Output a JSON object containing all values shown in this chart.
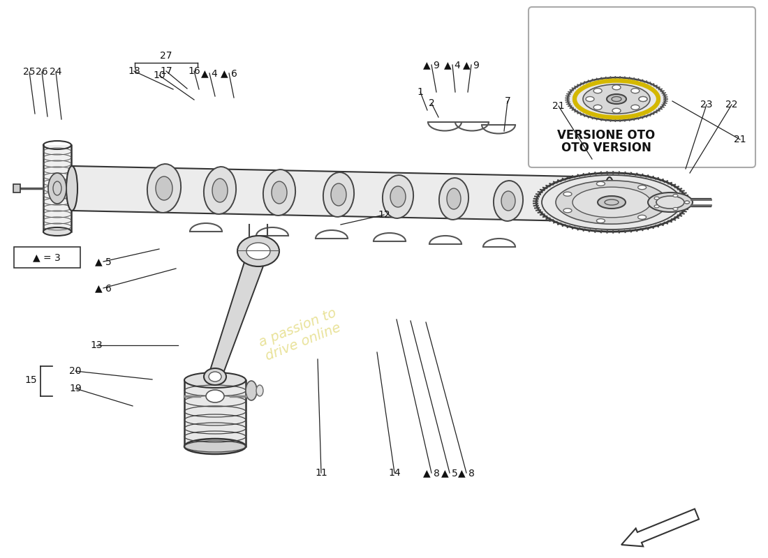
{
  "bg_color": "#ffffff",
  "line_color": "#222222",
  "fig_width": 11.0,
  "fig_height": 8.0,
  "triangle_symbol": "▲",
  "versione_oto_line1": "VERSIONE OTO",
  "versione_oto_line2": "OTO VERSION",
  "triangle_eq": "▲ = 3",
  "watermark": "a passion to\ndrive online"
}
